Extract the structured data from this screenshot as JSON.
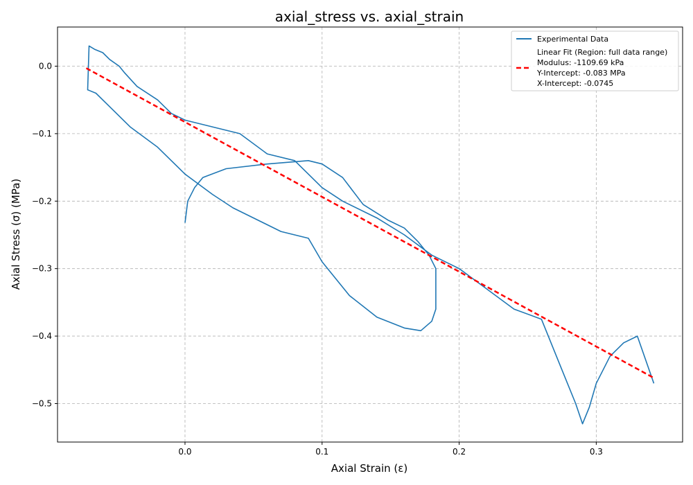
{
  "chart_data": {
    "type": "line",
    "title": "axial_stress vs. axial_strain",
    "xlabel": "Axial Strain (ε)",
    "ylabel": "Axial Stress (σ) (MPa)",
    "xlim": [
      -0.093,
      0.363
    ],
    "ylim": [
      -0.557,
      0.058
    ],
    "xticks": [
      0.0,
      0.1,
      0.2,
      0.3
    ],
    "xtick_labels": [
      "0.0",
      "0.1",
      "0.2",
      "0.3"
    ],
    "yticks": [
      0.0,
      -0.1,
      -0.2,
      -0.3,
      -0.4,
      -0.5
    ],
    "ytick_labels": [
      "0.0",
      "−0.1",
      "−0.2",
      "−0.3",
      "−0.4",
      "−0.5"
    ],
    "grid": true,
    "legend_position": "top-right",
    "colors": {
      "data": "#1f77b4",
      "fit": "#ff0000"
    },
    "series": [
      {
        "name": "Experimental Data",
        "style": "solid",
        "x": [
          0.0,
          0.002,
          0.007,
          0.013,
          0.03,
          0.06,
          0.09,
          0.1,
          0.115,
          0.13,
          0.148,
          0.16,
          0.17,
          0.178,
          0.183,
          0.183,
          0.18,
          0.172,
          0.16,
          0.14,
          0.12,
          0.1,
          0.09,
          0.07,
          0.05,
          0.035,
          0.02,
          0.0,
          -0.02,
          -0.04,
          -0.055,
          -0.065,
          -0.071,
          -0.07,
          -0.066,
          -0.06,
          -0.055,
          -0.048,
          -0.044,
          -0.035,
          -0.02,
          -0.01,
          0.0,
          0.02,
          0.04,
          0.06,
          0.08,
          0.1,
          0.115,
          0.12,
          0.14,
          0.16,
          0.18,
          0.2,
          0.22,
          0.24,
          0.26,
          0.275,
          0.285,
          0.29,
          0.295,
          0.3,
          0.31,
          0.32,
          0.33,
          0.342
        ],
        "y": [
          -0.232,
          -0.2,
          -0.18,
          -0.165,
          -0.152,
          -0.145,
          -0.14,
          -0.145,
          -0.165,
          -0.205,
          -0.228,
          -0.24,
          -0.26,
          -0.28,
          -0.3,
          -0.36,
          -0.378,
          -0.392,
          -0.388,
          -0.372,
          -0.34,
          -0.29,
          -0.255,
          -0.245,
          -0.225,
          -0.21,
          -0.19,
          -0.16,
          -0.12,
          -0.09,
          -0.06,
          -0.04,
          -0.035,
          0.03,
          0.025,
          0.02,
          0.01,
          0.0,
          -0.01,
          -0.03,
          -0.05,
          -0.07,
          -0.08,
          -0.09,
          -0.1,
          -0.13,
          -0.14,
          -0.18,
          -0.2,
          -0.205,
          -0.225,
          -0.25,
          -0.28,
          -0.3,
          -0.33,
          -0.36,
          -0.375,
          -0.45,
          -0.5,
          -0.53,
          -0.505,
          -0.47,
          -0.43,
          -0.41,
          -0.4,
          -0.47
        ]
      },
      {
        "name": "Linear Fit (Region: full data range)",
        "style": "dashed",
        "x": [
          -0.072,
          0.342
        ],
        "y": [
          -0.003,
          -0.462
        ]
      }
    ],
    "legend": {
      "entries": [
        "Experimental Data",
        "Linear Fit (Region: full data range)"
      ],
      "fit_details": [
        "Modulus: -1109.69 kPa",
        "Y-Intercept: -0.083 MPa",
        "X-Intercept: -0.0745"
      ]
    }
  }
}
